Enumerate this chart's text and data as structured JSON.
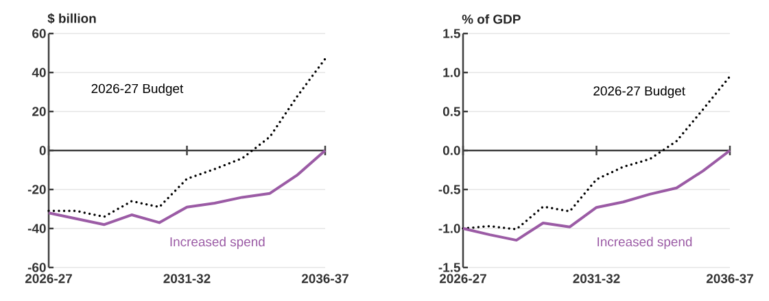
{
  "chart_data": [
    {
      "type": "line",
      "ylabel": "$ billion",
      "categories": [
        "2026-27",
        null,
        null,
        null,
        null,
        "2031-32",
        null,
        null,
        null,
        null,
        "2036-37"
      ],
      "ylim": [
        -60,
        60
      ],
      "yticks": [
        -60,
        -40,
        -20,
        0,
        20,
        40,
        60
      ],
      "grid": "y",
      "ref_lines": [
        {
          "axis": "y",
          "value": 0
        }
      ],
      "series": [
        {
          "name": "2026-27 Budget",
          "color": "#000000",
          "line_style": "dotted",
          "values": [
            -31,
            -31,
            -34,
            -26,
            -29,
            -14.5,
            -9.5,
            -4,
            7,
            28,
            47
          ]
        },
        {
          "name": "Increased spend",
          "color": "#9b5ba5",
          "line_style": "solid",
          "values": [
            -32,
            -35,
            -38,
            -33,
            -37,
            -29,
            -27,
            -24,
            -22,
            -12.5,
            0
          ]
        }
      ]
    },
    {
      "type": "line",
      "ylabel": "% of GDP",
      "categories": [
        "2026-27",
        null,
        null,
        null,
        null,
        "2031-32",
        null,
        null,
        null,
        null,
        "2036-37"
      ],
      "ylim": [
        -1.5,
        1.5
      ],
      "yticks": [
        -1.5,
        {
          "value": -1,
          "label": "-1.0"
        },
        -0.5,
        {
          "value": 0,
          "label": "0.0"
        },
        0.5,
        {
          "value": 1,
          "label": "1.0"
        },
        1.5
      ],
      "grid": "y",
      "ref_lines": [
        {
          "axis": "y",
          "value": 0
        }
      ],
      "series": [
        {
          "name": "2026-27 Budget",
          "color": "#000000",
          "line_style": "dotted",
          "values": [
            -1.0,
            -0.97,
            -1.01,
            -0.72,
            -0.78,
            -0.37,
            -0.21,
            -0.11,
            0.12,
            0.53,
            0.95
          ]
        },
        {
          "name": "Increased spend",
          "color": "#9b5ba5",
          "line_style": "solid",
          "values": [
            -1.0,
            -1.08,
            -1.15,
            -0.93,
            -0.98,
            -0.73,
            -0.66,
            -0.56,
            -0.48,
            -0.26,
            0
          ]
        }
      ]
    }
  ]
}
